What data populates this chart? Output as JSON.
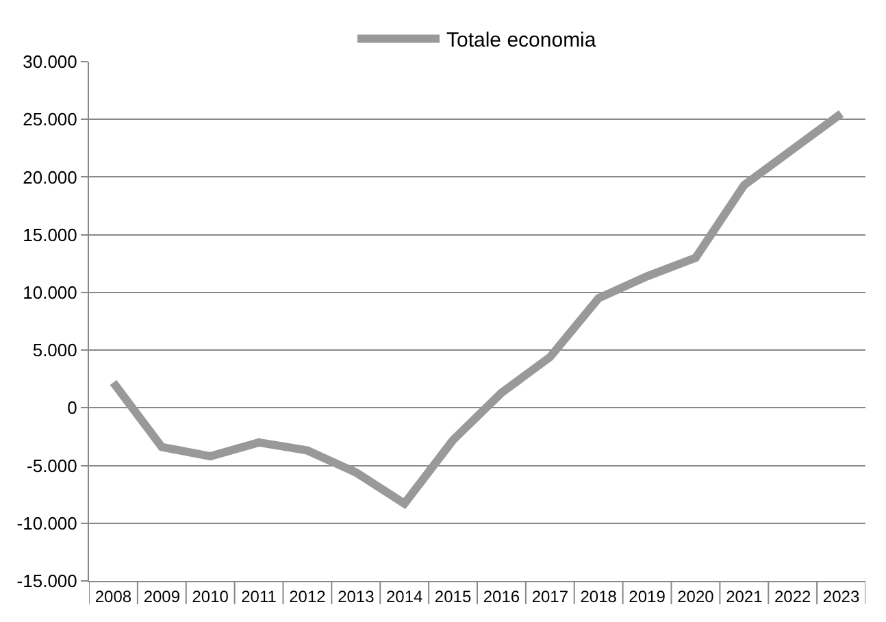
{
  "chart_data": {
    "type": "line",
    "categories": [
      "2008",
      "2009",
      "2010",
      "2011",
      "2012",
      "2013",
      "2014",
      "2015",
      "2016",
      "2017",
      "2018",
      "2019",
      "2020",
      "2021",
      "2022",
      "2023"
    ],
    "series": [
      {
        "name": "Totale economia",
        "color": "#999999",
        "values": [
          2200,
          -3400,
          -4200,
          -3000,
          -3700,
          -5600,
          -8300,
          -2800,
          1300,
          4400,
          9500,
          11400,
          13000,
          19300,
          22400,
          25500
        ]
      }
    ],
    "ylim": [
      -15000,
      30000
    ],
    "yticks": [
      {
        "value": -15000,
        "label": "-15.000"
      },
      {
        "value": -10000,
        "label": "-10.000"
      },
      {
        "value": -5000,
        "label": "-5.000"
      },
      {
        "value": 0,
        "label": "0"
      },
      {
        "value": 5000,
        "label": "5.000"
      },
      {
        "value": 10000,
        "label": "10.000"
      },
      {
        "value": 15000,
        "label": "15.000"
      },
      {
        "value": 20000,
        "label": "20.000"
      },
      {
        "value": 25000,
        "label": "25.000"
      },
      {
        "value": 30000,
        "label": "30.000"
      }
    ],
    "grid": "y",
    "legend": "top",
    "marker": "none",
    "line_style": "solid"
  }
}
